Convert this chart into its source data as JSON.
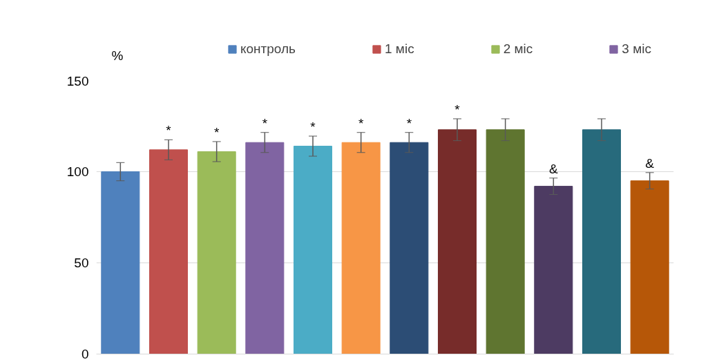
{
  "chart_data": {
    "type": "bar",
    "ylabel": "%",
    "categories": [
      null,
      null,
      null,
      null,
      null,
      null,
      null,
      null,
      null,
      null,
      null,
      null
    ],
    "series": [
      {
        "name": "контроль",
        "color": "#4f81bd",
        "values": [
          100,
          null,
          null,
          null,
          null,
          null,
          null,
          null,
          null,
          null,
          null,
          null
        ],
        "errors": [
          5,
          null,
          null,
          null,
          null,
          null,
          null,
          null,
          null,
          null,
          null,
          null
        ]
      },
      {
        "name": "1 міс",
        "color": "#c0504d",
        "values": [
          null,
          112,
          null,
          null,
          null,
          null,
          null,
          null,
          null,
          null,
          null,
          null
        ],
        "errors": [
          null,
          5.5,
          null,
          null,
          null,
          null,
          null,
          null,
          null,
          null,
          null,
          null
        ],
        "value_labels": [
          null,
          "*",
          null,
          null,
          null,
          null,
          null,
          null,
          null,
          null,
          null,
          null
        ]
      },
      {
        "name": "2 міс",
        "color": "#9bbb59",
        "values": [
          null,
          null,
          111,
          null,
          null,
          null,
          null,
          null,
          null,
          null,
          null,
          null
        ],
        "errors": [
          null,
          null,
          5.5,
          null,
          null,
          null,
          null,
          null,
          null,
          null,
          null,
          null
        ],
        "value_labels": [
          null,
          null,
          "*",
          null,
          null,
          null,
          null,
          null,
          null,
          null,
          null,
          null
        ]
      },
      {
        "name": "3 міс",
        "color": "#8064a2",
        "values": [
          null,
          null,
          null,
          116,
          null,
          null,
          null,
          null,
          null,
          null,
          null,
          null
        ],
        "errors": [
          null,
          null,
          null,
          5.5,
          null,
          null,
          null,
          null,
          null,
          null,
          null,
          null
        ],
        "value_labels": [
          null,
          null,
          null,
          "*",
          null,
          null,
          null,
          null,
          null,
          null,
          null,
          null
        ]
      },
      {
        "color": "#4bacc6",
        "values": [
          null,
          null,
          null,
          null,
          114,
          null,
          null,
          null,
          null,
          null,
          null,
          null
        ],
        "errors": [
          null,
          null,
          null,
          null,
          5.5,
          null,
          null,
          null,
          null,
          null,
          null,
          null
        ],
        "value_labels": [
          null,
          null,
          null,
          null,
          "*",
          null,
          null,
          null,
          null,
          null,
          null,
          null
        ]
      },
      {
        "color": "#f79646",
        "values": [
          null,
          null,
          null,
          null,
          null,
          116,
          null,
          null,
          null,
          null,
          null,
          null
        ],
        "errors": [
          null,
          null,
          null,
          null,
          null,
          5.5,
          null,
          null,
          null,
          null,
          null,
          null
        ],
        "value_labels": [
          null,
          null,
          null,
          null,
          null,
          "*",
          null,
          null,
          null,
          null,
          null,
          null
        ]
      },
      {
        "color": "#2c4d75",
        "values": [
          null,
          null,
          null,
          null,
          null,
          null,
          116,
          null,
          null,
          null,
          null,
          null
        ],
        "errors": [
          null,
          null,
          null,
          null,
          null,
          null,
          5.5,
          null,
          null,
          null,
          null,
          null
        ],
        "value_labels": [
          null,
          null,
          null,
          null,
          null,
          null,
          "*",
          null,
          null,
          null,
          null,
          null
        ]
      },
      {
        "color": "#772c2a",
        "values": [
          null,
          null,
          null,
          null,
          null,
          null,
          null,
          123,
          null,
          null,
          null,
          null
        ],
        "errors": [
          null,
          null,
          null,
          null,
          null,
          null,
          null,
          6,
          null,
          null,
          null,
          null
        ],
        "value_labels": [
          null,
          null,
          null,
          null,
          null,
          null,
          null,
          "*",
          null,
          null,
          null,
          null
        ]
      },
      {
        "color": "#5f7530",
        "values": [
          null,
          null,
          null,
          null,
          null,
          null,
          null,
          null,
          123,
          null,
          null,
          null
        ],
        "errors": [
          null,
          null,
          null,
          null,
          null,
          null,
          null,
          null,
          6,
          null,
          null,
          null
        ]
      },
      {
        "color": "#4d3b62",
        "values": [
          null,
          null,
          null,
          null,
          null,
          null,
          null,
          null,
          null,
          92,
          null,
          null
        ],
        "errors": [
          null,
          null,
          null,
          null,
          null,
          null,
          null,
          null,
          null,
          4.5,
          null,
          null
        ],
        "value_labels": [
          null,
          null,
          null,
          null,
          null,
          null,
          null,
          null,
          null,
          "&",
          null,
          null
        ]
      },
      {
        "color": "#276a7c",
        "values": [
          null,
          null,
          null,
          null,
          null,
          null,
          null,
          null,
          null,
          null,
          123,
          null
        ],
        "errors": [
          null,
          null,
          null,
          null,
          null,
          null,
          null,
          null,
          null,
          null,
          6,
          null
        ]
      },
      {
        "color": "#b65708",
        "values": [
          null,
          null,
          null,
          null,
          null,
          null,
          null,
          null,
          null,
          null,
          null,
          95
        ],
        "errors": [
          null,
          null,
          null,
          null,
          null,
          null,
          null,
          null,
          null,
          null,
          null,
          4.5
        ],
        "value_labels": [
          null,
          null,
          null,
          null,
          null,
          null,
          null,
          null,
          null,
          null,
          null,
          "&"
        ]
      }
    ],
    "ylim": [
      0,
      150
    ],
    "yticks": [
      0,
      50,
      100,
      150
    ],
    "grid": "y",
    "legend": "top",
    "tick_labels": "y"
  }
}
